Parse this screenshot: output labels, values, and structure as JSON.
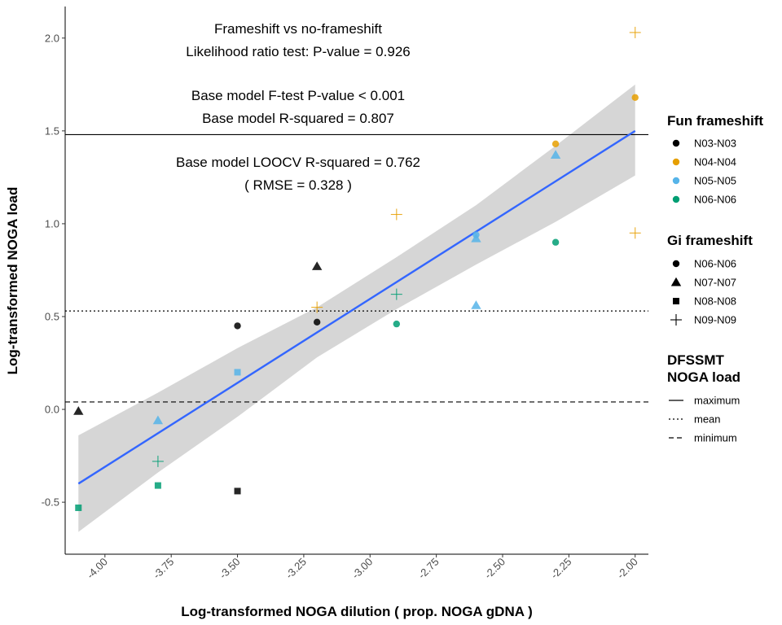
{
  "chart_data": {
    "type": "scatter",
    "title": "",
    "xlabel": "Log-transformed NOGA dilution ( prop. NOGA gDNA )",
    "ylabel": "Log-transformed NOGA load",
    "xlim": [
      -4.15,
      -1.95
    ],
    "ylim": [
      -0.78,
      2.17
    ],
    "x_ticks": [
      {
        "value": -4.0,
        "label": "-4.00"
      },
      {
        "value": -3.75,
        "label": "-3.75"
      },
      {
        "value": -3.5,
        "label": "-3.50"
      },
      {
        "value": -3.25,
        "label": "-3.25"
      },
      {
        "value": -3.0,
        "label": "-3.00"
      },
      {
        "value": -2.75,
        "label": "-2.75"
      },
      {
        "value": -2.5,
        "label": "-2.50"
      },
      {
        "value": -2.25,
        "label": "-2.25"
      },
      {
        "value": -2.0,
        "label": "-2.00"
      }
    ],
    "y_ticks": [
      {
        "value": -0.5,
        "label": "-0.5"
      },
      {
        "value": 0.0,
        "label": "0.0"
      },
      {
        "value": 0.5,
        "label": "0.5"
      },
      {
        "value": 1.0,
        "label": "1.0"
      },
      {
        "value": 1.5,
        "label": "1.5"
      },
      {
        "value": 2.0,
        "label": "2.0"
      }
    ],
    "grid": false,
    "annotations": [
      "Frameshift vs no-frameshift",
      "Likelihood ratio test: P-value = 0.926",
      "Base model F-test P-value < 0.001",
      "Base model R-squared = 0.807",
      "Base model LOOCV R-squared = 0.762",
      "( RMSE = 0.328 )"
    ],
    "regression": {
      "color": "#3366ff",
      "x": [
        -4.1,
        -2.0
      ],
      "y": [
        -0.4,
        1.5
      ],
      "ci_band": {
        "x": [
          -4.1,
          -3.8,
          -3.5,
          -3.2,
          -2.9,
          -2.6,
          -2.3,
          -2.0
        ],
        "upper": [
          -0.14,
          0.09,
          0.33,
          0.55,
          0.82,
          1.1,
          1.42,
          1.75
        ],
        "lower": [
          -0.66,
          -0.34,
          -0.04,
          0.28,
          0.54,
          0.78,
          1.01,
          1.26
        ]
      }
    },
    "hlines": [
      {
        "name": "maximum",
        "y": 1.48,
        "style": "solid"
      },
      {
        "name": "mean",
        "y": 0.53,
        "style": "dotted"
      },
      {
        "name": "minimum",
        "y": 0.04,
        "style": "dashed"
      }
    ],
    "points": [
      {
        "x": -4.1,
        "y": -0.01,
        "fun": "N03-N03",
        "gi": "N07-N07"
      },
      {
        "x": -4.1,
        "y": -0.53,
        "fun": "N06-N06",
        "gi": "N08-N08"
      },
      {
        "x": -3.8,
        "y": -0.06,
        "fun": "N05-N05",
        "gi": "N07-N07"
      },
      {
        "x": -3.8,
        "y": -0.41,
        "fun": "N06-N06",
        "gi": "N08-N08"
      },
      {
        "x": -3.8,
        "y": -0.28,
        "fun": "N06-N06",
        "gi": "N09-N09"
      },
      {
        "x": -3.5,
        "y": 0.45,
        "fun": "N03-N03",
        "gi": "N06-N06"
      },
      {
        "x": -3.5,
        "y": 0.2,
        "fun": "N05-N05",
        "gi": "N08-N08"
      },
      {
        "x": -3.5,
        "y": -0.44,
        "fun": "N03-N03",
        "gi": "N08-N08"
      },
      {
        "x": -3.2,
        "y": 0.77,
        "fun": "N03-N03",
        "gi": "N07-N07"
      },
      {
        "x": -3.2,
        "y": 0.47,
        "fun": "N03-N03",
        "gi": "N06-N06"
      },
      {
        "x": -3.2,
        "y": 0.55,
        "fun": "N04-N04",
        "gi": "N09-N09"
      },
      {
        "x": -2.9,
        "y": 1.05,
        "fun": "N04-N04",
        "gi": "N09-N09"
      },
      {
        "x": -2.9,
        "y": 0.62,
        "fun": "N06-N06",
        "gi": "N09-N09"
      },
      {
        "x": -2.9,
        "y": 0.46,
        "fun": "N06-N06",
        "gi": "N06-N06"
      },
      {
        "x": -2.6,
        "y": 0.94,
        "fun": "N05-N05",
        "gi": "N06-N06"
      },
      {
        "x": -2.6,
        "y": 0.92,
        "fun": "N05-N05",
        "gi": "N07-N07"
      },
      {
        "x": -2.6,
        "y": 0.56,
        "fun": "N05-N05",
        "gi": "N07-N07"
      },
      {
        "x": -2.3,
        "y": 1.43,
        "fun": "N04-N04",
        "gi": "N06-N06"
      },
      {
        "x": -2.3,
        "y": 1.37,
        "fun": "N05-N05",
        "gi": "N07-N07"
      },
      {
        "x": -2.3,
        "y": 0.9,
        "fun": "N06-N06",
        "gi": "N06-N06"
      },
      {
        "x": -2.0,
        "y": 2.03,
        "fun": "N04-N04",
        "gi": "N09-N09"
      },
      {
        "x": -2.0,
        "y": 1.68,
        "fun": "N04-N04",
        "gi": "N06-N06"
      },
      {
        "x": -2.0,
        "y": 0.95,
        "fun": "N04-N04",
        "gi": "N09-N09"
      }
    ],
    "legends": [
      {
        "title": "Fun frameshift",
        "kind": "color",
        "items": [
          {
            "label": "N03-N03",
            "color": "#000000"
          },
          {
            "label": "N04-N04",
            "color": "#e69f00"
          },
          {
            "label": "N05-N05",
            "color": "#56b4e9"
          },
          {
            "label": "N06-N06",
            "color": "#009e73"
          }
        ]
      },
      {
        "title": "Gi frameshift",
        "kind": "shape",
        "items": [
          {
            "label": "N06-N06",
            "shape": "circle"
          },
          {
            "label": "N07-N07",
            "shape": "triangle"
          },
          {
            "label": "N08-N08",
            "shape": "square"
          },
          {
            "label": "N09-N09",
            "shape": "plus"
          }
        ]
      },
      {
        "title": [
          "DFSSMT",
          "NOGA load"
        ],
        "kind": "linetype",
        "items": [
          {
            "label": "maximum",
            "style": "solid"
          },
          {
            "label": "mean",
            "style": "dotted"
          },
          {
            "label": "minimum",
            "style": "dashed"
          }
        ]
      }
    ]
  }
}
